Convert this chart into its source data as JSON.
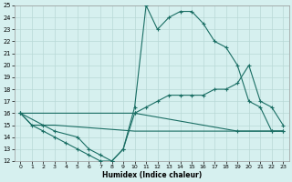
{
  "xlabel": "Humidex (Indice chaleur)",
  "bg_color": "#d6f0ef",
  "grid_color": "#b8d8d6",
  "line_color": "#1a6e64",
  "xlim": [
    -0.5,
    23.5
  ],
  "ylim": [
    12,
    25
  ],
  "xticks": [
    0,
    1,
    2,
    3,
    4,
    5,
    6,
    7,
    8,
    9,
    10,
    11,
    12,
    13,
    14,
    15,
    16,
    17,
    18,
    19,
    20,
    21,
    22,
    23
  ],
  "yticks": [
    12,
    13,
    14,
    15,
    16,
    17,
    18,
    19,
    20,
    21,
    22,
    23,
    24,
    25
  ],
  "line_peak": {
    "x": [
      0,
      2,
      3,
      5,
      6,
      7,
      8,
      9,
      10,
      11,
      12,
      13,
      14,
      15,
      16,
      17,
      18,
      19,
      20,
      21,
      22,
      23
    ],
    "y": [
      16,
      15,
      14.5,
      14,
      13,
      12.5,
      12,
      13,
      16.5,
      25,
      23,
      24,
      24.5,
      24.5,
      23.5,
      22,
      21.5,
      20,
      17,
      16.5,
      14.5,
      14.5
    ]
  },
  "line_diag": {
    "x": [
      0,
      10,
      11,
      12,
      13,
      14,
      15,
      16,
      17,
      18,
      19,
      20,
      21,
      22,
      23
    ],
    "y": [
      16,
      16,
      16.5,
      17,
      17.5,
      17.5,
      17.5,
      17.5,
      18,
      18,
      18.5,
      20,
      17,
      16.5,
      15
    ]
  },
  "line_flat": {
    "x": [
      0,
      1,
      2,
      3,
      10,
      19,
      22,
      23
    ],
    "y": [
      16,
      15,
      15,
      15,
      14.5,
      14.5,
      14.5,
      14.5
    ]
  },
  "line_bottom": {
    "x": [
      0,
      1,
      2,
      3,
      4,
      5,
      6,
      7,
      8,
      9,
      10,
      19,
      22,
      23
    ],
    "y": [
      16,
      15,
      14.5,
      14,
      13.5,
      13,
      12.5,
      12,
      12,
      13,
      16,
      14.5,
      14.5,
      14.5
    ]
  }
}
